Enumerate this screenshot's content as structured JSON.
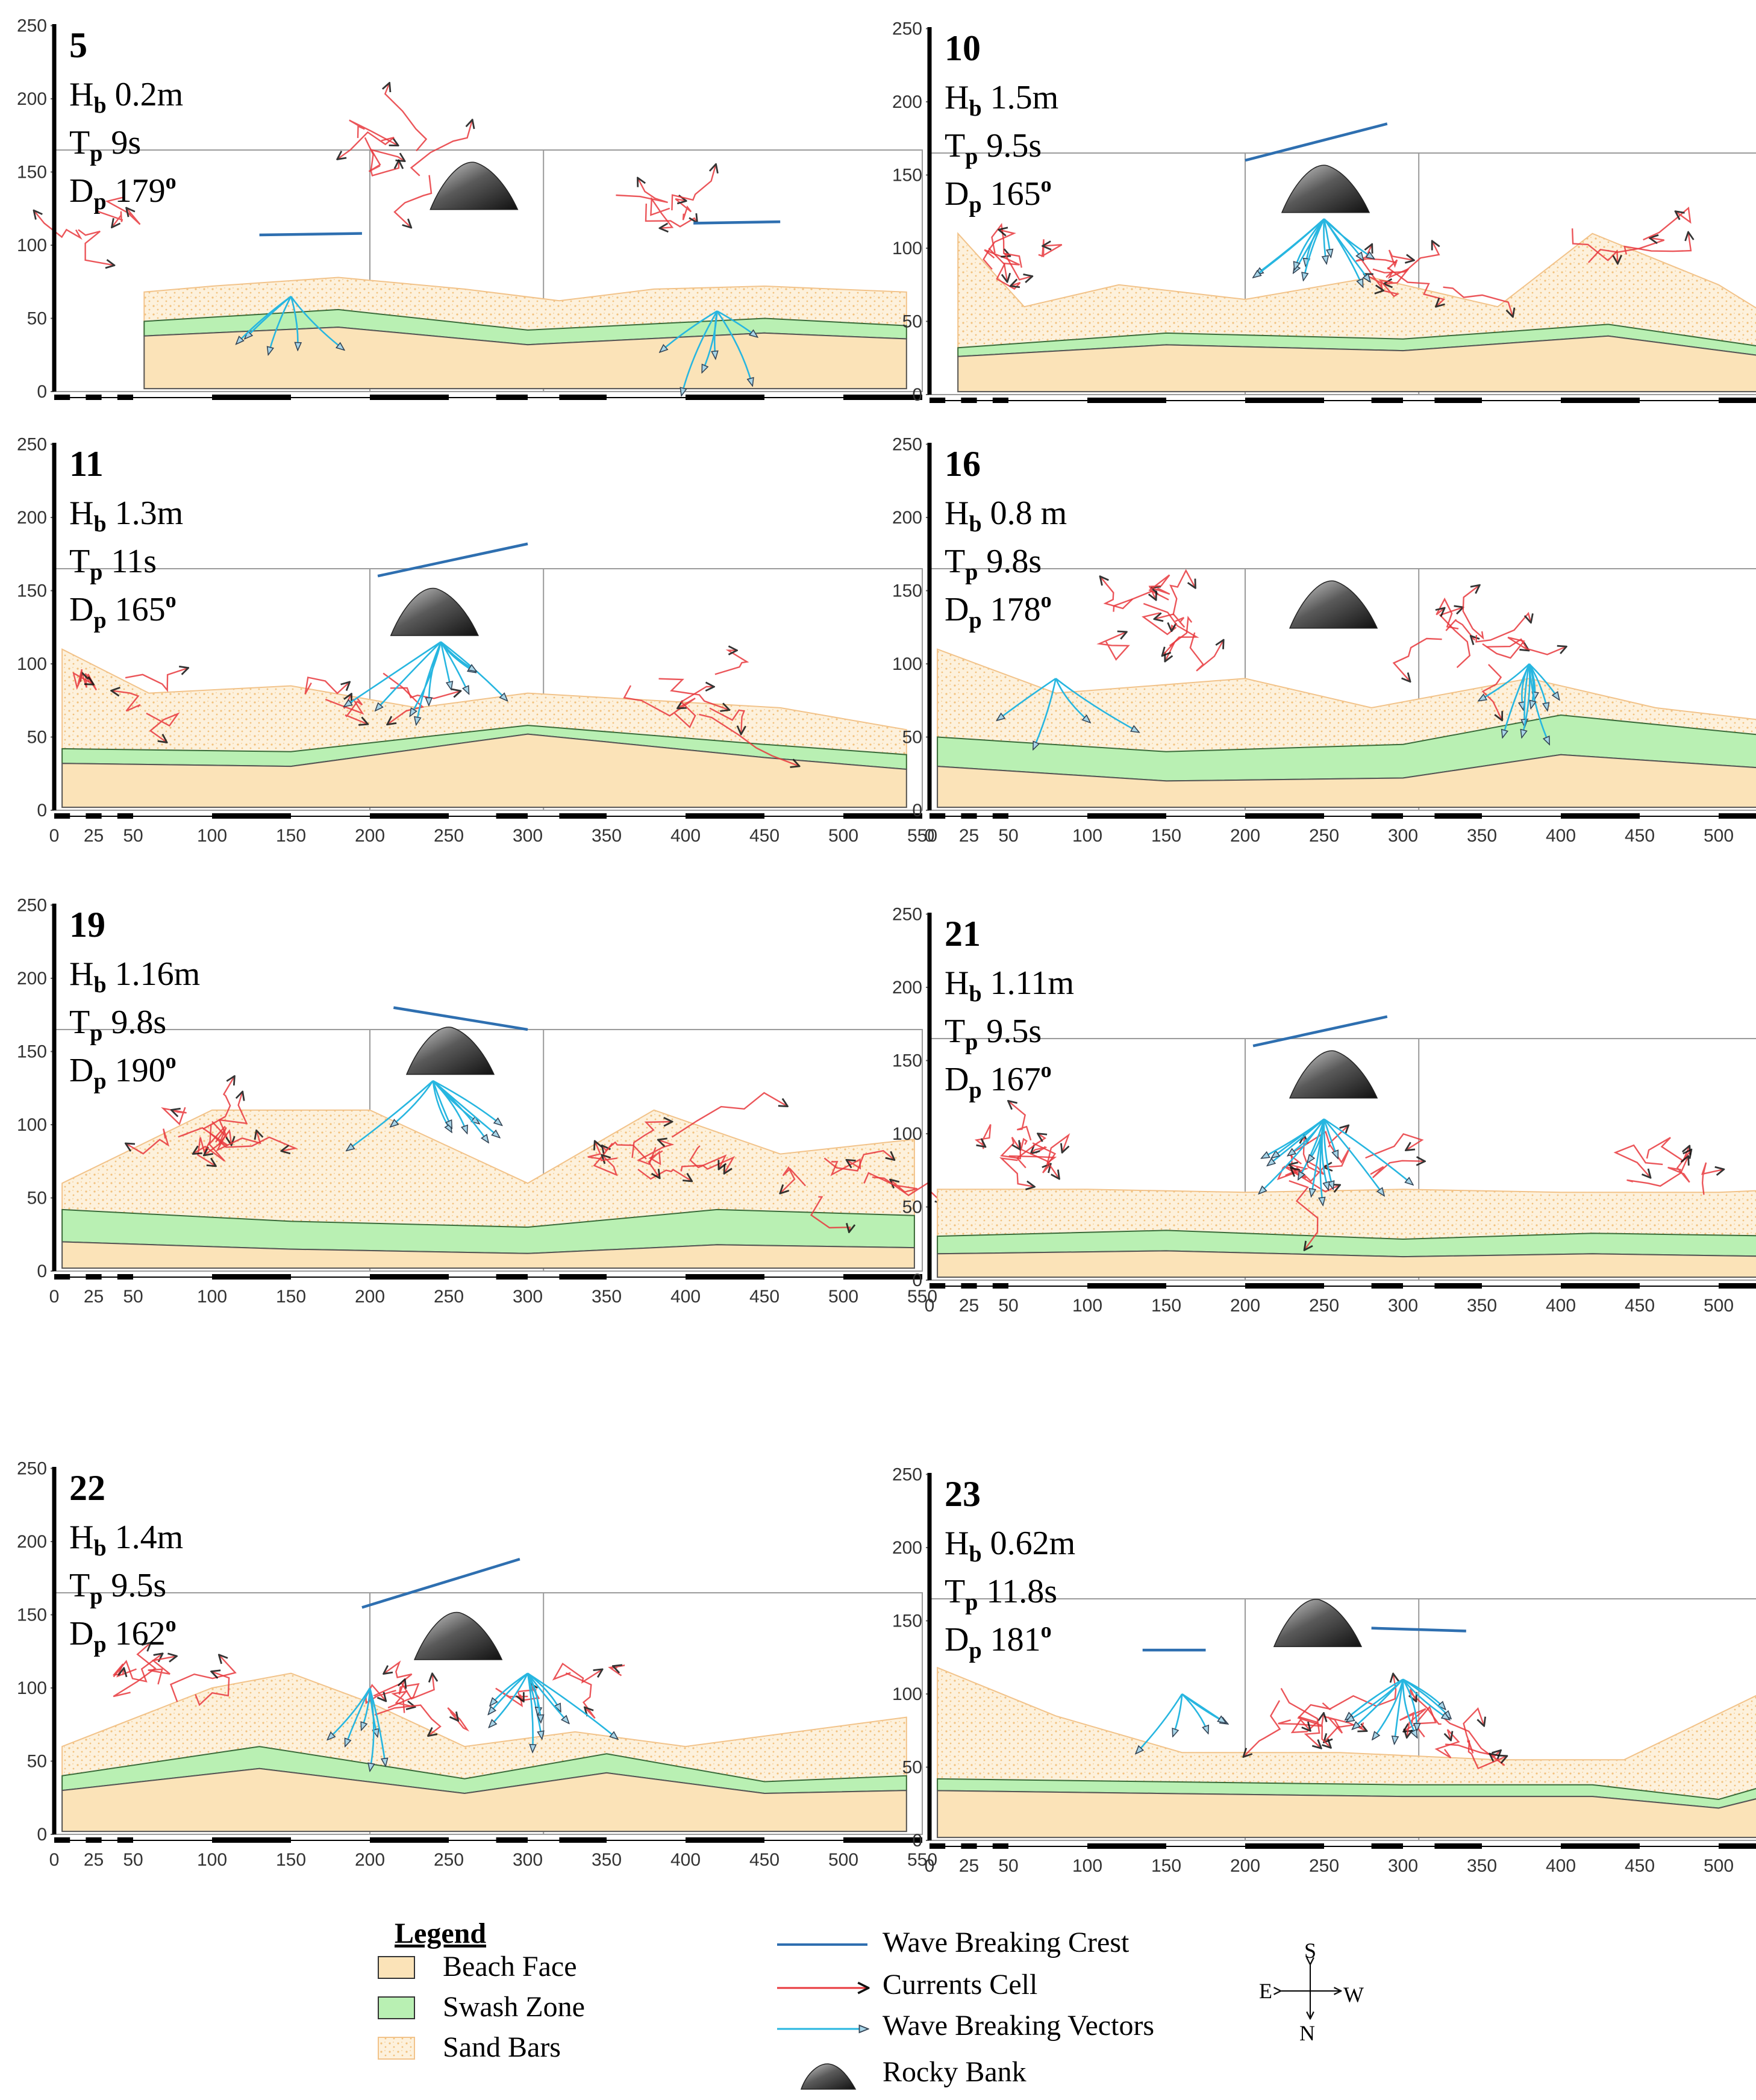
{
  "axis": {
    "x_ticks": [
      "0",
      "25",
      "50",
      "100",
      "150",
      "200",
      "250",
      "300",
      "350",
      "400",
      "450",
      "500",
      "550"
    ],
    "y_ticks": [
      "0",
      "50",
      "100",
      "150",
      "200",
      "250"
    ]
  },
  "panels": [
    {
      "id": "5",
      "Hb_sym": "H",
      "Hb_sub": "b",
      "Hb": "0.2m",
      "Tp_sym": "T",
      "Tp_sub": "p",
      "Tp": "9s",
      "Dp_sym": "D",
      "Dp_sub": "p",
      "Dp": "179",
      "deg": "o"
    },
    {
      "id": "10",
      "Hb_sym": "H",
      "Hb_sub": "b",
      "Hb": "1.5m",
      "Tp_sym": "T",
      "Tp_sub": "p",
      "Tp": "9.5s",
      "Dp_sym": "D",
      "Dp_sub": "p",
      "Dp": "165",
      "deg": "o"
    },
    {
      "id": "11",
      "Hb_sym": "H",
      "Hb_sub": "b",
      "Hb": "1.3m",
      "Tp_sym": "T",
      "Tp_sub": "p",
      "Tp": "11s",
      "Dp_sym": "D",
      "Dp_sub": "p",
      "Dp": "165",
      "deg": "o"
    },
    {
      "id": "16",
      "Hb_sym": "H",
      "Hb_sub": "b",
      "Hb": "0.8 m",
      "Tp_sym": "T",
      "Tp_sub": "p",
      "Tp": "9.8s",
      "Dp_sym": "D",
      "Dp_sub": "p",
      "Dp": "178",
      "deg": "o"
    },
    {
      "id": "19",
      "Hb_sym": "H",
      "Hb_sub": "b",
      "Hb": "1.16m",
      "Tp_sym": "T",
      "Tp_sub": "p",
      "Tp": "9.8s",
      "Dp_sym": "D",
      "Dp_sub": "p",
      "Dp": "190",
      "deg": "o"
    },
    {
      "id": "21",
      "Hb_sym": "H",
      "Hb_sub": "b",
      "Hb": "1.11m",
      "Tp_sym": "T",
      "Tp_sub": "p",
      "Tp": "9.5s",
      "Dp_sym": "D",
      "Dp_sub": "p",
      "Dp": "167",
      "deg": "o"
    },
    {
      "id": "22",
      "Hb_sym": "H",
      "Hb_sub": "b",
      "Hb": "1.4m",
      "Tp_sym": "T",
      "Tp_sub": "p",
      "Tp": "9.5s",
      "Dp_sym": "D",
      "Dp_sub": "p",
      "Dp": "162",
      "deg": "o"
    },
    {
      "id": "23",
      "Hb_sym": "H",
      "Hb_sub": "b",
      "Hb": "0.62m",
      "Tp_sym": "T",
      "Tp_sub": "p",
      "Tp": "11.8s",
      "Dp_sym": "D",
      "Dp_sub": "p",
      "Dp": "181",
      "deg": "o"
    }
  ],
  "legend": {
    "title": "Legend",
    "areas": [
      "Beach Face",
      "Swash Zone",
      "Sand Bars"
    ],
    "lines": [
      "Wave Breaking Crest",
      "Currents Cell",
      "Wave Breaking Vectors",
      "Rocky Bank"
    ]
  },
  "compass": {
    "S": "S",
    "E": "E",
    "W": "W",
    "N": "N"
  },
  "colors": {
    "beach_face": "#fbe3b8",
    "swash_zone": "#b9f0b3",
    "sand_bars": "#fdf1dc",
    "sand_dots": "#f5c98a",
    "crest": "#2e6fb0",
    "currents": "#e8383d",
    "vectors": "#27b6e0",
    "rock": "#444444"
  }
}
